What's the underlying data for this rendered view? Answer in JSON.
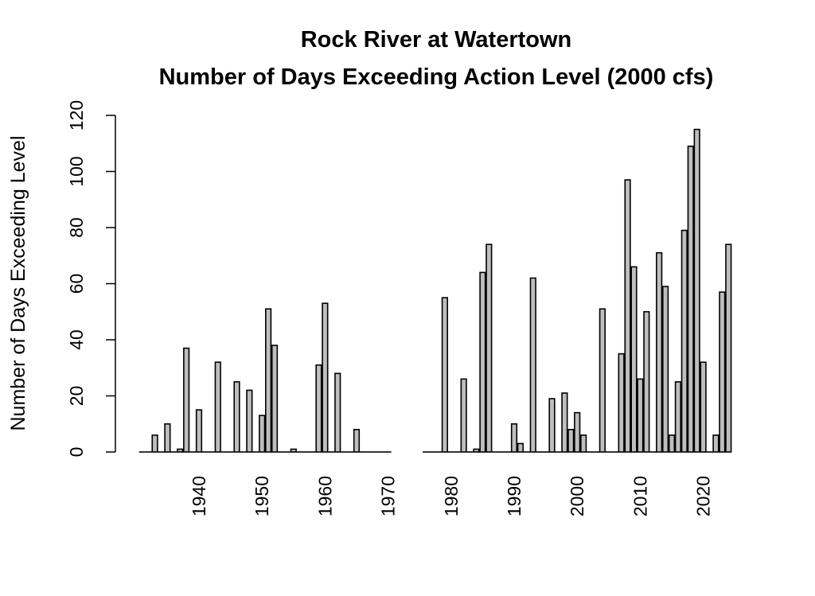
{
  "chart_data": {
    "type": "bar",
    "title": "Rock River at Watertown",
    "subtitle": "Number of Days Exceeding Action Level (2000 cfs)",
    "xlabel": "",
    "ylabel": "Number of Days Exceeding Level",
    "ylim": [
      0,
      120
    ],
    "yticks": [
      0,
      20,
      40,
      60,
      80,
      100,
      120
    ],
    "xticks": [
      1940,
      1950,
      1960,
      1970,
      1980,
      1990,
      2000,
      2010,
      2020
    ],
    "grid": false,
    "bar_fill": "#bebebe",
    "bar_stroke": "#000000",
    "year_ranges": [
      [
        1931,
        1970
      ],
      [
        1976,
        2024
      ]
    ],
    "values": {
      "1933": 6,
      "1935": 10,
      "1937": 1,
      "1938": 37,
      "1940": 15,
      "1943": 32,
      "1946": 25,
      "1948": 22,
      "1950": 13,
      "1951": 51,
      "1952": 38,
      "1955": 1,
      "1959": 31,
      "1960": 53,
      "1962": 28,
      "1965": 8,
      "1979": 55,
      "1982": 26,
      "1984": 1,
      "1985": 64,
      "1986": 74,
      "1990": 10,
      "1991": 3,
      "1993": 62,
      "1996": 19,
      "1998": 21,
      "1999": 8,
      "2000": 14,
      "2001": 6,
      "2004": 51,
      "2007": 35,
      "2008": 97,
      "2009": 66,
      "2010": 26,
      "2011": 50,
      "2013": 71,
      "2014": 59,
      "2015": 6,
      "2016": 25,
      "2017": 79,
      "2018": 109,
      "2019": 115,
      "2020": 32,
      "2022": 6,
      "2023": 57,
      "2024": 74
    }
  }
}
